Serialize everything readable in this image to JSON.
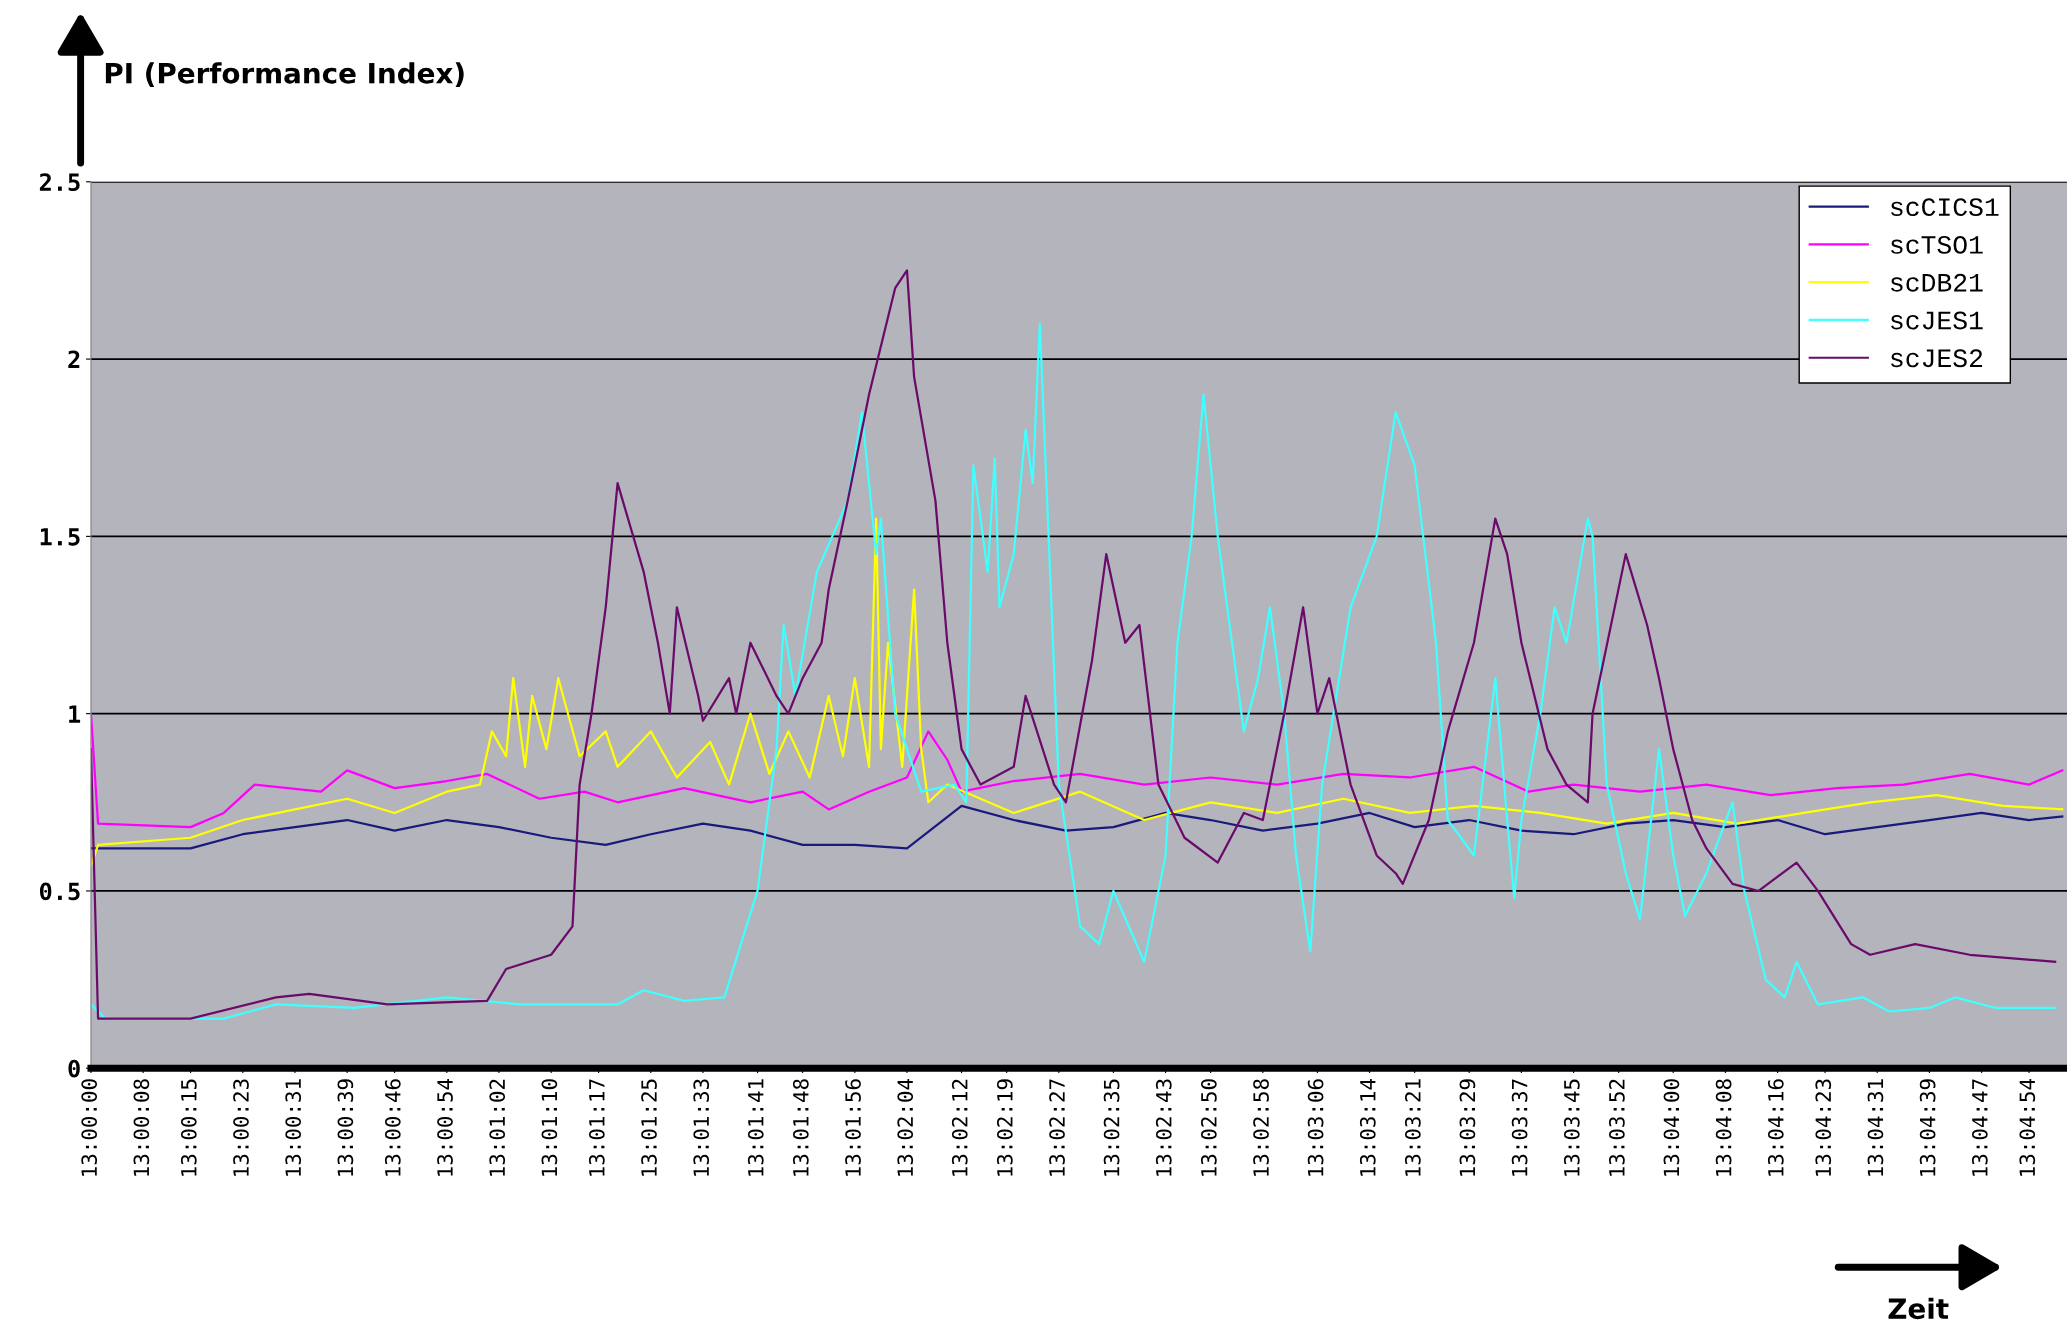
{
  "chart_data": {
    "type": "line",
    "ylabel": "PI (Performance Index)",
    "xlabel": "Zeit",
    "xlim": [
      13.0,
      13.0833
    ],
    "ylim": [
      0,
      2.5
    ],
    "yticks": [
      0,
      0.5,
      1,
      1.5,
      2,
      2.5
    ],
    "grid": "y",
    "legend": "top right",
    "xticks": [
      {
        "value": 13.0,
        "label": "13:00:00"
      },
      {
        "value": 13.0022,
        "label": "13:00:08"
      },
      {
        "value": 13.0042,
        "label": "13:00:15"
      },
      {
        "value": 13.0064,
        "label": "13:00:23"
      },
      {
        "value": 13.0086,
        "label": "13:00:31"
      },
      {
        "value": 13.0108,
        "label": "13:00:39"
      },
      {
        "value": 13.0128,
        "label": "13:00:46"
      },
      {
        "value": 13.015,
        "label": "13:00:54"
      },
      {
        "value": 13.0172,
        "label": "13:01:02"
      },
      {
        "value": 13.0194,
        "label": "13:01:10"
      },
      {
        "value": 13.0214,
        "label": "13:01:17"
      },
      {
        "value": 13.0236,
        "label": "13:01:25"
      },
      {
        "value": 13.0258,
        "label": "13:01:33"
      },
      {
        "value": 13.0281,
        "label": "13:01:41"
      },
      {
        "value": 13.03,
        "label": "13:01:48"
      },
      {
        "value": 13.0322,
        "label": "13:01:56"
      },
      {
        "value": 13.0344,
        "label": "13:02:04"
      },
      {
        "value": 13.0367,
        "label": "13:02:12"
      },
      {
        "value": 13.0386,
        "label": "13:02:19"
      },
      {
        "value": 13.0408,
        "label": "13:02:27"
      },
      {
        "value": 13.0431,
        "label": "13:02:35"
      },
      {
        "value": 13.0453,
        "label": "13:02:43"
      },
      {
        "value": 13.0472,
        "label": "13:02:50"
      },
      {
        "value": 13.0494,
        "label": "13:02:58"
      },
      {
        "value": 13.0517,
        "label": "13:03:06"
      },
      {
        "value": 13.0539,
        "label": "13:03:14"
      },
      {
        "value": 13.0558,
        "label": "13:03:21"
      },
      {
        "value": 13.0581,
        "label": "13:03:29"
      },
      {
        "value": 13.0603,
        "label": "13:03:37"
      },
      {
        "value": 13.0625,
        "label": "13:03:45"
      },
      {
        "value": 13.0644,
        "label": "13:03:52"
      },
      {
        "value": 13.0667,
        "label": "13:04:00"
      },
      {
        "value": 13.0689,
        "label": "13:04:08"
      },
      {
        "value": 13.0711,
        "label": "13:04:16"
      },
      {
        "value": 13.0731,
        "label": "13:04:23"
      },
      {
        "value": 13.0753,
        "label": "13:04:31"
      },
      {
        "value": 13.0775,
        "label": "13:04:39"
      },
      {
        "value": 13.0797,
        "label": "13:04:47"
      },
      {
        "value": 13.0817,
        "label": "13:04:54"
      }
    ],
    "series": [
      {
        "name": "scCICS1",
        "color": "#1a1a7a",
        "x": [
          13.0,
          13.0042,
          13.0064,
          13.0086,
          13.0108,
          13.0128,
          13.015,
          13.0172,
          13.0194,
          13.0217,
          13.0236,
          13.0258,
          13.0278,
          13.03,
          13.0322,
          13.0344,
          13.0367,
          13.0389,
          13.0411,
          13.0431,
          13.0453,
          13.0472,
          13.0494,
          13.0517,
          13.0539,
          13.0558,
          13.0581,
          13.0603,
          13.0625,
          13.0647,
          13.0667,
          13.0689,
          13.0711,
          13.0731,
          13.0753,
          13.0775,
          13.0797,
          13.0817,
          13.0831
        ],
        "values": [
          0.62,
          0.62,
          0.66,
          0.68,
          0.7,
          0.67,
          0.7,
          0.68,
          0.65,
          0.63,
          0.66,
          0.69,
          0.67,
          0.63,
          0.63,
          0.62,
          0.74,
          0.7,
          0.67,
          0.68,
          0.72,
          0.7,
          0.67,
          0.69,
          0.72,
          0.68,
          0.7,
          0.67,
          0.66,
          0.69,
          0.7,
          0.68,
          0.7,
          0.66,
          0.68,
          0.7,
          0.72,
          0.7,
          0.71
        ]
      },
      {
        "name": "scTSO1",
        "color": "#ff00ff",
        "x": [
          13.0,
          13.0003,
          13.0042,
          13.0056,
          13.0069,
          13.0097,
          13.0108,
          13.0128,
          13.015,
          13.0167,
          13.0189,
          13.0208,
          13.0222,
          13.025,
          13.0278,
          13.03,
          13.0311,
          13.0328,
          13.0344,
          13.0353,
          13.0361,
          13.0367,
          13.0389,
          13.0417,
          13.0444,
          13.0472,
          13.05,
          13.0528,
          13.0556,
          13.0583,
          13.0606,
          13.0625,
          13.0653,
          13.0681,
          13.0708,
          13.0736,
          13.0764,
          13.0792,
          13.0817,
          13.0831
        ],
        "values": [
          1.0,
          0.69,
          0.68,
          0.72,
          0.8,
          0.78,
          0.84,
          0.79,
          0.81,
          0.83,
          0.76,
          0.78,
          0.75,
          0.79,
          0.75,
          0.78,
          0.73,
          0.78,
          0.82,
          0.95,
          0.87,
          0.78,
          0.81,
          0.83,
          0.8,
          0.82,
          0.8,
          0.83,
          0.82,
          0.85,
          0.78,
          0.8,
          0.78,
          0.8,
          0.77,
          0.79,
          0.8,
          0.83,
          0.8,
          0.84
        ]
      },
      {
        "name": "scDB21",
        "color": "#ffff00",
        "x": [
          13.0,
          13.0003,
          13.0042,
          13.0064,
          13.0108,
          13.0128,
          13.015,
          13.0164,
          13.0169,
          13.0175,
          13.0178,
          13.0183,
          13.0186,
          13.0192,
          13.0197,
          13.0206,
          13.0217,
          13.0222,
          13.0236,
          13.0247,
          13.0261,
          13.0269,
          13.0278,
          13.0286,
          13.0294,
          13.0303,
          13.0311,
          13.0317,
          13.0322,
          13.0328,
          13.0331,
          13.0333,
          13.0336,
          13.0342,
          13.0347,
          13.035,
          13.0353,
          13.0361,
          13.0389,
          13.0417,
          13.0444,
          13.0472,
          13.05,
          13.0528,
          13.0556,
          13.0583,
          13.0611,
          13.0639,
          13.0667,
          13.0694,
          13.0722,
          13.075,
          13.0778,
          13.0806,
          13.0831
        ],
        "values": [
          0.57,
          0.63,
          0.65,
          0.7,
          0.76,
          0.72,
          0.78,
          0.8,
          0.95,
          0.88,
          1.1,
          0.85,
          1.05,
          0.9,
          1.1,
          0.88,
          0.95,
          0.85,
          0.95,
          0.82,
          0.92,
          0.8,
          1.0,
          0.83,
          0.95,
          0.82,
          1.05,
          0.88,
          1.1,
          0.85,
          1.55,
          0.9,
          1.2,
          0.85,
          1.35,
          0.9,
          0.75,
          0.8,
          0.72,
          0.78,
          0.7,
          0.75,
          0.72,
          0.76,
          0.72,
          0.74,
          0.72,
          0.69,
          0.72,
          0.69,
          0.72,
          0.75,
          0.77,
          0.74,
          0.73
        ]
      },
      {
        "name": "scJES1",
        "color": "#40ffff",
        "x": [
          13.0,
          13.0006,
          13.0056,
          13.0078,
          13.0111,
          13.015,
          13.0181,
          13.0222,
          13.0233,
          13.025,
          13.0267,
          13.0281,
          13.0289,
          13.0292,
          13.0297,
          13.0306,
          13.0319,
          13.0325,
          13.0331,
          13.0333,
          13.0339,
          13.035,
          13.0364,
          13.0369,
          13.0372,
          13.0378,
          13.0381,
          13.0383,
          13.0389,
          13.0394,
          13.0397,
          13.04,
          13.0408,
          13.0417,
          13.0425,
          13.0431,
          13.0444,
          13.0453,
          13.0458,
          13.0464,
          13.0469,
          13.0475,
          13.0481,
          13.0486,
          13.0492,
          13.0497,
          13.0503,
          13.0508,
          13.0514,
          13.0519,
          13.0531,
          13.0542,
          13.055,
          13.0558,
          13.0567,
          13.0572,
          13.0583,
          13.0592,
          13.0597,
          13.06,
          13.0603,
          13.0611,
          13.0617,
          13.0622,
          13.0631,
          13.0633,
          13.0639,
          13.0647,
          13.0653,
          13.0661,
          13.0667,
          13.0672,
          13.0681,
          13.0692,
          13.0697,
          13.0706,
          13.0714,
          13.0719,
          13.0728,
          13.0747,
          13.0758,
          13.0775,
          13.0786,
          13.0803,
          13.0828
        ],
        "values": [
          0.18,
          0.14,
          0.14,
          0.18,
          0.17,
          0.2,
          0.18,
          0.18,
          0.22,
          0.19,
          0.2,
          0.5,
          0.9,
          1.25,
          1.05,
          1.4,
          1.6,
          1.85,
          1.45,
          1.55,
          1.0,
          0.78,
          0.8,
          0.75,
          1.7,
          1.4,
          1.72,
          1.3,
          1.45,
          1.8,
          1.65,
          2.1,
          0.8,
          0.4,
          0.35,
          0.5,
          0.3,
          0.6,
          1.2,
          1.5,
          1.9,
          1.5,
          1.2,
          0.95,
          1.1,
          1.3,
          1.0,
          0.6,
          0.33,
          0.8,
          1.3,
          1.5,
          1.85,
          1.7,
          1.2,
          0.7,
          0.6,
          1.1,
          0.7,
          0.48,
          0.7,
          1.0,
          1.3,
          1.2,
          1.55,
          1.5,
          0.8,
          0.55,
          0.42,
          0.9,
          0.6,
          0.43,
          0.55,
          0.75,
          0.5,
          0.25,
          0.2,
          0.3,
          0.18,
          0.2,
          0.16,
          0.17,
          0.2,
          0.17,
          0.17
        ]
      },
      {
        "name": "scJES2",
        "color": "#6a0a6a",
        "x": [
          13.0,
          13.0003,
          13.0042,
          13.0078,
          13.0092,
          13.0125,
          13.0167,
          13.0175,
          13.0194,
          13.0203,
          13.0206,
          13.0211,
          13.0217,
          13.0222,
          13.0233,
          13.0239,
          13.0244,
          13.0247,
          13.0256,
          13.0258,
          13.0269,
          13.0272,
          13.0278,
          13.0289,
          13.0294,
          13.03,
          13.0308,
          13.0311,
          13.0319,
          13.0328,
          13.0339,
          13.0344,
          13.0347,
          13.0356,
          13.0361,
          13.0367,
          13.0375,
          13.0389,
          13.0394,
          13.0406,
          13.0411,
          13.0422,
          13.0428,
          13.0436,
          13.0442,
          13.045,
          13.0461,
          13.0475,
          13.0486,
          13.0494,
          13.0503,
          13.0511,
          13.0517,
          13.0522,
          13.0531,
          13.0542,
          13.055,
          13.0553,
          13.0564,
          13.0572,
          13.0583,
          13.0592,
          13.0597,
          13.0603,
          13.0614,
          13.0622,
          13.0631,
          13.0633,
          13.0647,
          13.0656,
          13.0661,
          13.0667,
          13.0675,
          13.0681,
          13.0692,
          13.0703,
          13.0719,
          13.0728,
          13.0742,
          13.075,
          13.0769,
          13.0792,
          13.0828
        ],
        "values": [
          0.9,
          0.14,
          0.14,
          0.2,
          0.21,
          0.18,
          0.19,
          0.28,
          0.32,
          0.4,
          0.8,
          1.0,
          1.3,
          1.65,
          1.4,
          1.2,
          1.0,
          1.3,
          1.05,
          0.98,
          1.1,
          1.0,
          1.2,
          1.05,
          1.0,
          1.1,
          1.2,
          1.35,
          1.6,
          1.9,
          2.2,
          2.25,
          1.95,
          1.6,
          1.2,
          0.9,
          0.8,
          0.85,
          1.05,
          0.8,
          0.75,
          1.15,
          1.45,
          1.2,
          1.25,
          0.8,
          0.65,
          0.58,
          0.72,
          0.7,
          1.0,
          1.3,
          1.0,
          1.1,
          0.8,
          0.6,
          0.55,
          0.52,
          0.7,
          0.95,
          1.2,
          1.55,
          1.45,
          1.2,
          0.9,
          0.8,
          0.75,
          1.0,
          1.45,
          1.25,
          1.1,
          0.9,
          0.7,
          0.62,
          0.52,
          0.5,
          0.58,
          0.5,
          0.35,
          0.32,
          0.35,
          0.32,
          0.3
        ]
      }
    ]
  }
}
